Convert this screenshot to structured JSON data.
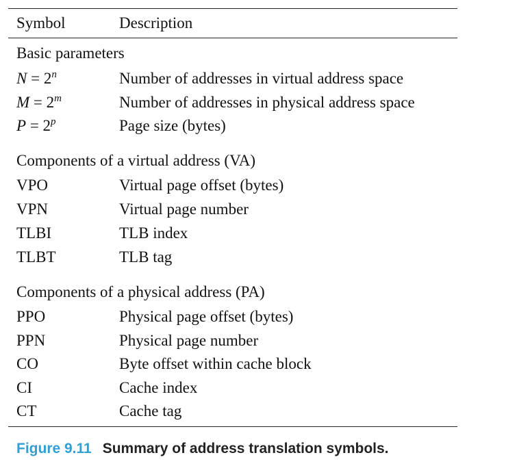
{
  "table": {
    "header": {
      "symbol": "Symbol",
      "description": "Description"
    },
    "sections": [
      {
        "title": "Basic parameters",
        "rows": [
          {
            "lhs": "N",
            "eq": " = 2",
            "sup": "n",
            "description": "Number of addresses in virtual address space"
          },
          {
            "lhs": "M",
            "eq": " = 2",
            "sup": "m",
            "description": "Number of addresses in physical address space"
          },
          {
            "lhs": "P",
            "eq": " = 2",
            "sup": "p",
            "description": "Page size (bytes)"
          }
        ]
      },
      {
        "title": "Components of a virtual address (VA)",
        "rows": [
          {
            "symbol": "VPO",
            "description": "Virtual page offset (bytes)"
          },
          {
            "symbol": "VPN",
            "description": "Virtual page number"
          },
          {
            "symbol": "TLBI",
            "description": "TLB index"
          },
          {
            "symbol": "TLBT",
            "description": "TLB tag"
          }
        ]
      },
      {
        "title": "Components of a physical address (PA)",
        "rows": [
          {
            "symbol": "PPO",
            "description": "Physical page offset (bytes)"
          },
          {
            "symbol": "PPN",
            "description": "Physical page number"
          },
          {
            "symbol": "CO",
            "description": "Byte offset within cache block"
          },
          {
            "symbol": "CI",
            "description": "Cache index"
          },
          {
            "symbol": "CT",
            "description": "Cache tag"
          }
        ]
      }
    ]
  },
  "caption": {
    "label": "Figure 9.11",
    "text": "Summary of address translation symbols."
  }
}
